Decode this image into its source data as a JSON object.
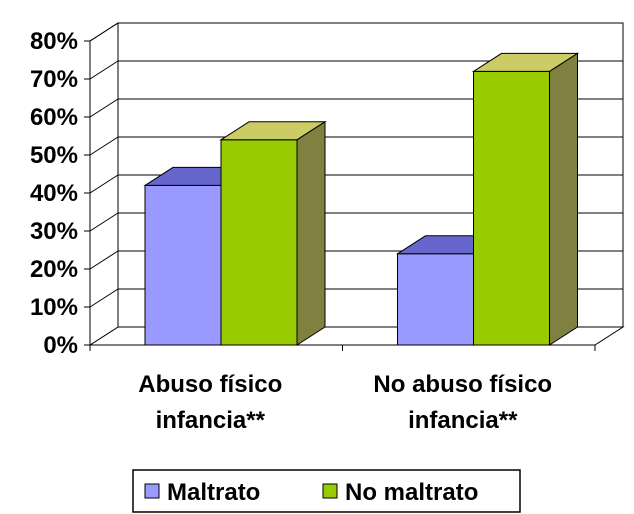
{
  "chart_data": {
    "type": "bar",
    "style": "3d-clustered-column",
    "categories": [
      [
        "Abuso físico",
        "infancia**"
      ],
      [
        "No abuso físico",
        "infancia**"
      ]
    ],
    "series": [
      {
        "name": "Maltrato",
        "values": [
          42,
          24
        ],
        "color": "#9999ff",
        "top_color": "#6666cc"
      },
      {
        "name": "No maltrato",
        "values": [
          54,
          72
        ],
        "color": "#99cc00",
        "top_color": "#cccc66",
        "side_color": "#808040"
      }
    ],
    "y_ticks": [
      "0%",
      "10%",
      "20%",
      "30%",
      "40%",
      "50%",
      "60%",
      "70%",
      "80%"
    ],
    "ylim": [
      0,
      80
    ],
    "y_unit": "%",
    "grid": true,
    "legend_position": "bottom"
  }
}
